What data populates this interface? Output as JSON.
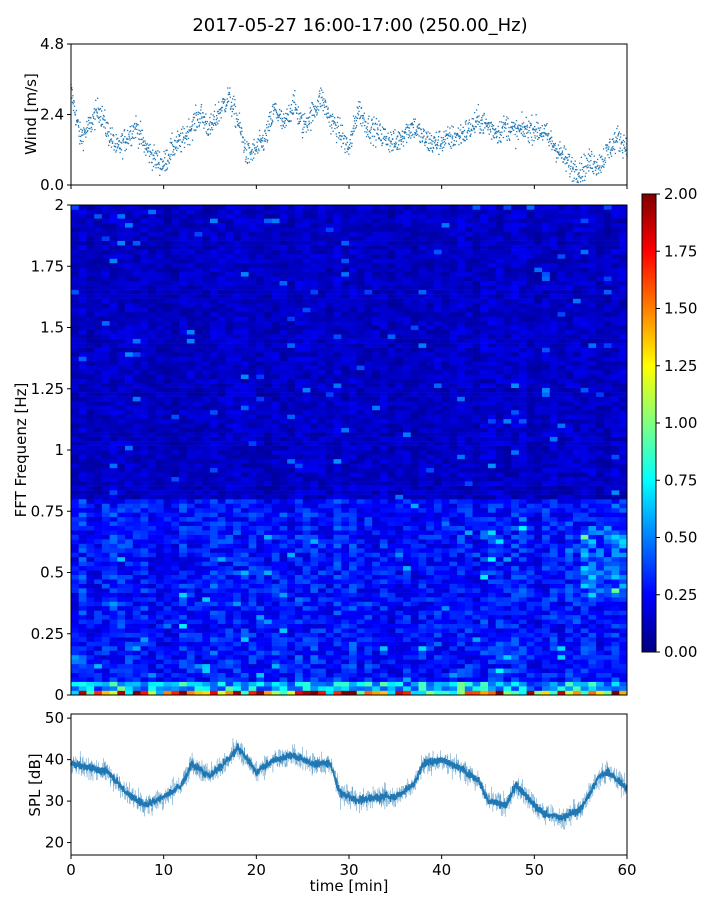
{
  "figure": {
    "title": "2017-05-27 16:00-17:00 (250.00_Hz)"
  },
  "colors": {
    "series": "#1f77b4",
    "jet": [
      "#00007f",
      "#0000ff",
      "#007fff",
      "#00ffff",
      "#7fff7f",
      "#ffff00",
      "#ff7f00",
      "#ff0000",
      "#7f0000"
    ]
  },
  "chart_data": [
    {
      "type": "scatter",
      "name": "wind-panel",
      "ylabel": "Wind [m/s]",
      "xlim": [
        0,
        60
      ],
      "ylim": [
        0,
        4.8
      ],
      "yticks": [
        "0.0",
        "2.4",
        "4.8"
      ],
      "ytick_values": [
        0,
        2.4,
        4.8
      ],
      "x_anchor": [
        0,
        1,
        2,
        3,
        4,
        5,
        6,
        7,
        8,
        9,
        10,
        11,
        12,
        13,
        14,
        15,
        16,
        17,
        18,
        19,
        20,
        21,
        22,
        23,
        24,
        25,
        26,
        27,
        28,
        29,
        30,
        31,
        32,
        33,
        34,
        35,
        36,
        37,
        38,
        39,
        40,
        41,
        42,
        43,
        44,
        45,
        46,
        47,
        48,
        49,
        50,
        51,
        52,
        53,
        54,
        55,
        56,
        57,
        58,
        59,
        60
      ],
      "y_anchor": [
        3.2,
        1.6,
        2.0,
        2.6,
        1.8,
        1.2,
        1.6,
        2.0,
        1.3,
        0.9,
        0.7,
        1.3,
        1.5,
        2.0,
        2.4,
        1.9,
        2.5,
        3.0,
        2.2,
        1.0,
        1.2,
        1.6,
        2.6,
        2.0,
        2.8,
        2.0,
        2.4,
        3.0,
        2.2,
        1.8,
        1.2,
        2.6,
        2.0,
        1.8,
        1.6,
        1.4,
        1.8,
        2.0,
        1.6,
        1.4,
        1.5,
        1.6,
        1.7,
        1.9,
        2.2,
        2.0,
        1.8,
        2.0,
        1.8,
        1.9,
        1.9,
        1.8,
        1.4,
        1.0,
        0.6,
        0.5,
        0.8,
        0.7,
        1.2,
        1.6,
        1.3
      ],
      "grid": false
    },
    {
      "type": "heatmap",
      "name": "fft-spectrogram",
      "ylabel": "FFT Frequenz [Hz]",
      "xlim": [
        0,
        60
      ],
      "ylim": [
        0,
        2
      ],
      "yticks": [
        "0",
        "0.25",
        "0.5",
        "0.75",
        "1",
        "1.25",
        "1.5",
        "1.75",
        "2"
      ],
      "ytick_values": [
        0,
        0.25,
        0.5,
        0.75,
        1,
        1.25,
        1.5,
        1.75,
        2
      ],
      "colorbar": {
        "range": [
          0,
          2
        ],
        "ticks": [
          "0.00",
          "0.25",
          "0.50",
          "0.75",
          "1.00",
          "1.25",
          "1.50",
          "1.75",
          "2.00"
        ],
        "tick_values": [
          0,
          0.25,
          0.5,
          0.75,
          1,
          1.25,
          1.5,
          1.75,
          2
        ],
        "colormap": "jet"
      },
      "typical_level": {
        "high_freq": 0.15,
        "mid_freq": 0.3,
        "low_freq_band": 0.5,
        "lowest_bin": 1.6
      }
    },
    {
      "type": "line",
      "name": "spl-panel",
      "xlabel": "time [min]",
      "ylabel": "SPL [dB]",
      "xlim": [
        0,
        60
      ],
      "ylim": [
        17,
        51
      ],
      "xticks": [
        "0",
        "10",
        "20",
        "30",
        "40",
        "50",
        "60"
      ],
      "xtick_values": [
        0,
        10,
        20,
        30,
        40,
        50,
        60
      ],
      "yticks": [
        "20",
        "30",
        "40",
        "50"
      ],
      "ytick_values": [
        20,
        30,
        40,
        50
      ],
      "x_anchor": [
        0,
        2,
        4,
        6,
        8,
        10,
        12,
        13,
        15,
        17,
        18,
        20,
        22,
        24,
        26,
        28,
        29,
        31,
        33,
        35,
        37,
        38,
        40,
        42,
        44,
        45,
        47,
        48,
        50,
        51,
        53,
        55,
        57,
        58,
        60
      ],
      "y_anchor": [
        39,
        38,
        37,
        32,
        29,
        31,
        34,
        39,
        36,
        40,
        43,
        37,
        40,
        41,
        39,
        39,
        32,
        30,
        31,
        31,
        34,
        39,
        40,
        38,
        35,
        30,
        29,
        34,
        29,
        27,
        26,
        28,
        36,
        37,
        33
      ],
      "grid": false
    }
  ]
}
